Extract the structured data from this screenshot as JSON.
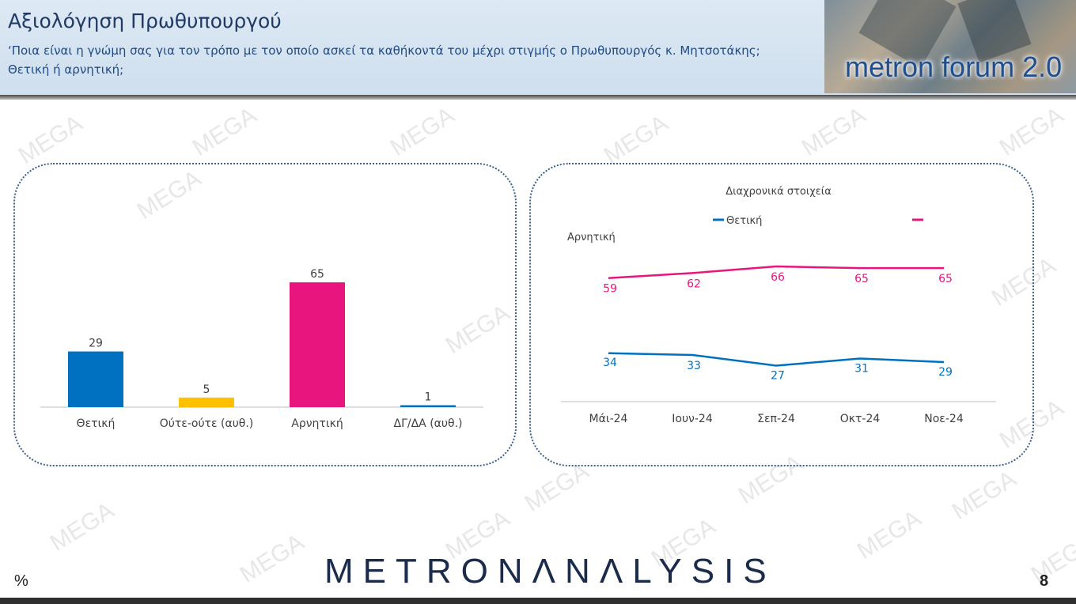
{
  "header": {
    "title": "Αξιολόγηση Πρωθυπουργού",
    "subtitle": "‘Ποια είναι η γνώμη σας για τον τρόπο με τον οποίο ασκεί τα καθήκοντά του μέχρι στιγμής ο Πρωθυπουργός κ. Μητσοτάκης; Θετική ή αρνητική;",
    "logo_text": "metron forum 2.0"
  },
  "footer": {
    "brand": "METRONΛNΛLYSIS",
    "unit": "%",
    "page": "8"
  },
  "watermark_text": "MEGA",
  "colors": {
    "positive": "#0070c0",
    "neutral": "#ffc000",
    "negative": "#e8157f",
    "dkna": "#0070c0"
  },
  "chart_data": [
    {
      "type": "bar",
      "categories": [
        "Θετική",
        "Ούτε-ούτε (αυθ.)",
        "Αρνητική",
        "ΔΓ/ΔΑ (αυθ.)"
      ],
      "values": [
        29,
        5,
        65,
        1
      ],
      "colors": [
        "#0070c0",
        "#ffc000",
        "#e8157f",
        "#0070c0"
      ],
      "ylim": [
        0,
        70
      ],
      "grid": false
    },
    {
      "type": "line",
      "title": "Διαχρονικά στοιχεία",
      "categories": [
        "Μάι-24",
        "Ιουν-24",
        "Σεπ-24",
        "Οκτ-24",
        "Νοε-24"
      ],
      "series": [
        {
          "name": "Θετική",
          "color": "#0070c0",
          "values": [
            34,
            33,
            27,
            31,
            29
          ]
        },
        {
          "name": "Αρνητική",
          "color": "#e8157f",
          "values": [
            59,
            62,
            66,
            65,
            65
          ]
        }
      ],
      "legend_position": "top",
      "grid": false
    }
  ]
}
